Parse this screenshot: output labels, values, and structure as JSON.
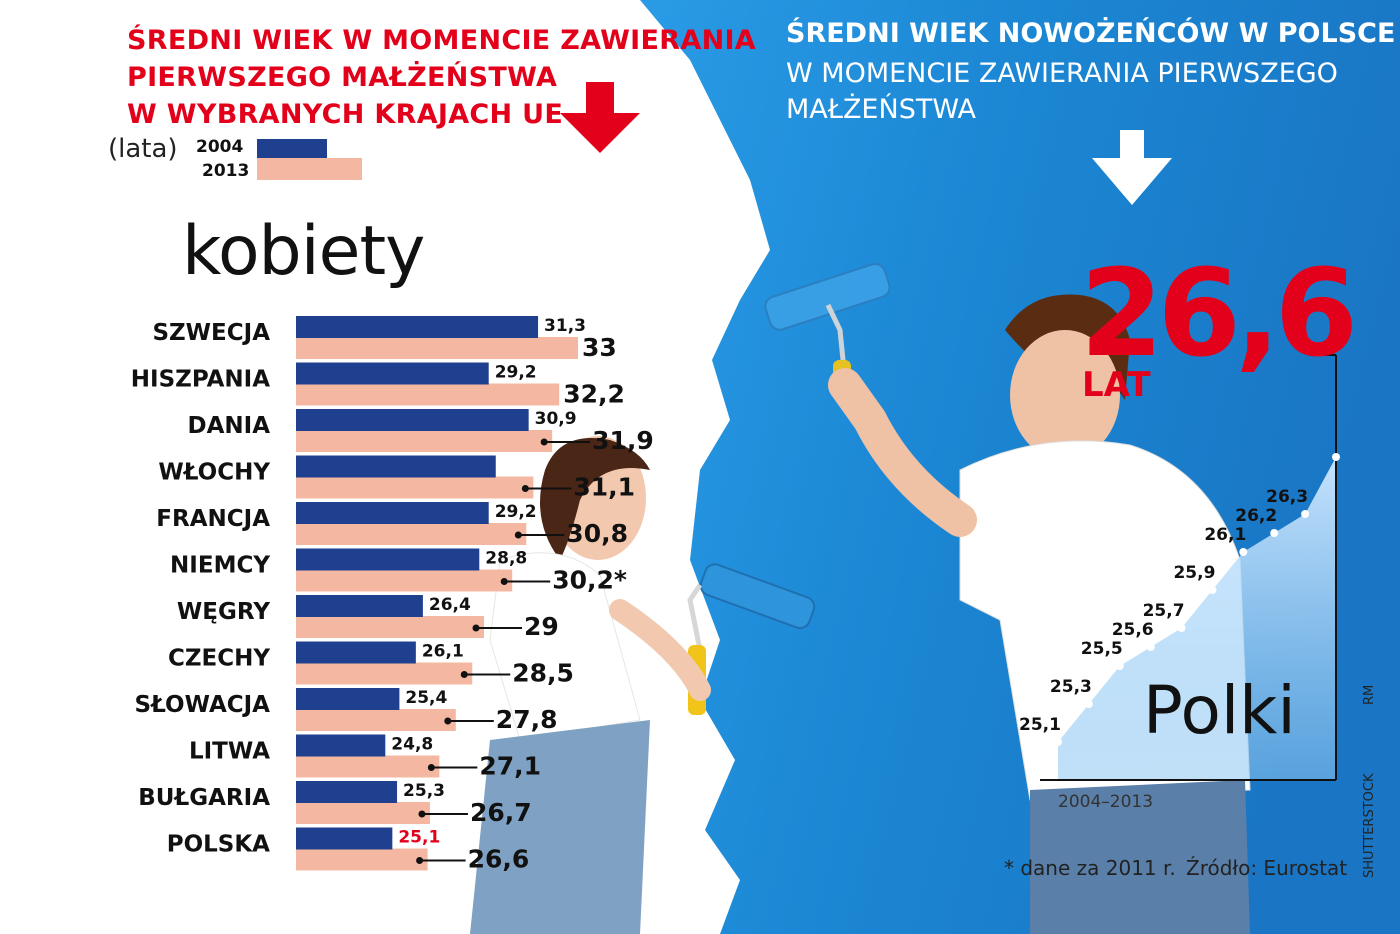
{
  "left_title": [
    "ŚREDNI WIEK W MOMENCIE ZAWIERANIA",
    "PIERWSZEGO MAŁŻEŃSTWA",
    "W WYBRANYCH KRAJACH UE"
  ],
  "right_title": {
    "bold": "ŚREDNI WIEK NOWOŻEŃCÓW W POLSCE",
    "regular": "W MOMENCIE ZAWIERANIA PIERWSZEGO MAŁŻEŃSTWA"
  },
  "legend": {
    "unit": "(lata)",
    "year1": "2004",
    "year2": "2013"
  },
  "colors": {
    "red": "#e3001b",
    "navy": "#1f3f8f",
    "peach": "#f4b8a2",
    "blue_bg": "#1e8fd8",
    "white": "#ffffff"
  },
  "icons": [
    "arrow-down-icon-red",
    "arrow-down-icon-white"
  ],
  "chart_data": [
    {
      "type": "bar",
      "subtitle": "kobiety",
      "categories": [
        "SZWECJA",
        "HISZPANIA",
        "DANIA",
        "WŁOCHY",
        "FRANCJA",
        "NIEMCY",
        "WĘGRY",
        "CZECHY",
        "SŁOWACJA",
        "LITWA",
        "BUŁGARIA",
        "POLSKA"
      ],
      "series": [
        {
          "name": "2004",
          "values": [
            31.3,
            29.2,
            30.9,
            29.5,
            29.2,
            28.8,
            26.4,
            26.1,
            25.4,
            24.8,
            25.3,
            25.1
          ],
          "labels": [
            "31,3",
            "29,2",
            "30,9",
            "",
            "29,2",
            "28,8",
            "26,4",
            "26,1",
            "25,4",
            "24,8",
            "25,3",
            "25,1"
          ]
        },
        {
          "name": "2013",
          "values": [
            33,
            32.2,
            31.9,
            31.1,
            30.8,
            30.2,
            29,
            28.5,
            27.8,
            27.1,
            26.7,
            26.6
          ],
          "labels": [
            "33",
            "32,2",
            "31,9",
            "31,1",
            "30,8",
            "30,2*",
            "29",
            "28,5",
            "27,8",
            "27,1",
            "26,7",
            "26,6"
          ]
        }
      ]
    },
    {
      "type": "area",
      "title": "26,6",
      "title_unit": "LAT",
      "subtitle": "Polki",
      "xlabel": "2004–2013",
      "x": [
        2004,
        2005,
        2006,
        2007,
        2008,
        2009,
        2010,
        2011,
        2012,
        2013
      ],
      "values": [
        25.1,
        25.3,
        25.5,
        25.6,
        25.7,
        25.9,
        26.1,
        26.2,
        26.3,
        26.6
      ],
      "labels": [
        "25,1",
        "25,3",
        "25,5",
        "25,6",
        "25,7",
        "25,9",
        "26,1",
        "26,2",
        "26,3",
        "26,6"
      ],
      "ylim": [
        24.9,
        26.9
      ]
    }
  ],
  "footnote": "* dane za 2011 r.",
  "source": "Źródło: Eurostat",
  "credits": {
    "photo": "SHUTTERSTOCK",
    "author": "RM"
  }
}
